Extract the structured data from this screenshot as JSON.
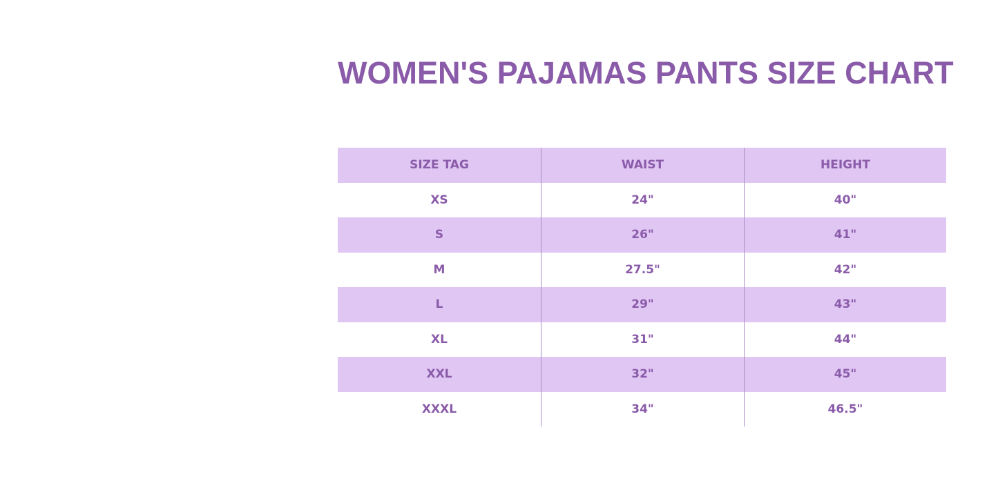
{
  "title": "WOMEN'S PAJAMAS PANTS SIZE CHART",
  "colors": {
    "accent": "#8a5ba9",
    "row_shade": "#e0c6f3"
  },
  "table": {
    "headers": [
      "SIZE TAG",
      "WAIST",
      "HEIGHT"
    ],
    "rows": [
      [
        "XS",
        "24\"",
        "40\""
      ],
      [
        "S",
        "26\"",
        "41\""
      ],
      [
        "M",
        "27.5\"",
        "42\""
      ],
      [
        "L",
        "29\"",
        "43\""
      ],
      [
        "XL",
        "31\"",
        "44\""
      ],
      [
        "XXL",
        "32\"",
        "45\""
      ],
      [
        "XXXL",
        "34\"",
        "46.5\""
      ]
    ]
  }
}
